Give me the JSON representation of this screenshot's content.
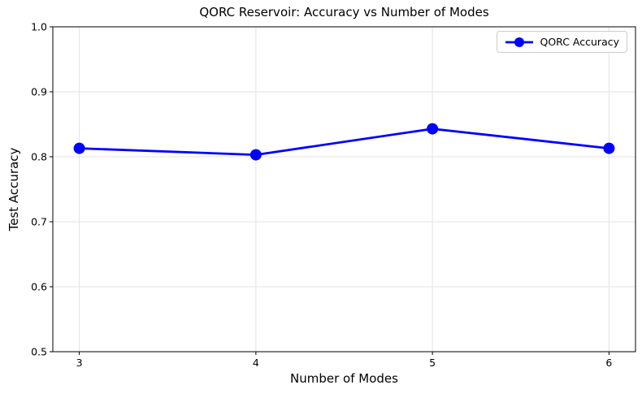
{
  "chart_data": {
    "type": "line",
    "title": "QORC Reservoir: Accuracy vs Number of Modes",
    "xlabel": "Number of Modes",
    "ylabel": "Test Accuracy",
    "x": [
      3,
      4,
      5,
      6
    ],
    "series": [
      {
        "name": "QORC Accuracy",
        "color": "#0000ff",
        "marker": "o",
        "values": [
          0.813,
          0.803,
          0.843,
          0.813
        ]
      }
    ],
    "xlim": [
      2.85,
      6.15
    ],
    "ylim": [
      0.5,
      1.0
    ],
    "xticks": [
      3,
      4,
      5,
      6
    ],
    "xtick_labels": [
      "3",
      "4",
      "5",
      "6"
    ],
    "yticks": [
      0.5,
      0.6,
      0.7,
      0.8,
      0.9,
      1.0
    ],
    "ytick_labels": [
      "0.5",
      "0.6",
      "0.7",
      "0.8",
      "0.9",
      "1.0"
    ],
    "grid": true,
    "legend": {
      "label": "QORC Accuracy",
      "position": "upper right"
    },
    "style": {
      "line_color": "#0000ff",
      "grid_color": "#e3e3e3",
      "spine_color": "#000000",
      "tick_color": "#000000",
      "text_color": "#000000",
      "legend_border_color": "#cccccc",
      "background": "#ffffff"
    }
  }
}
